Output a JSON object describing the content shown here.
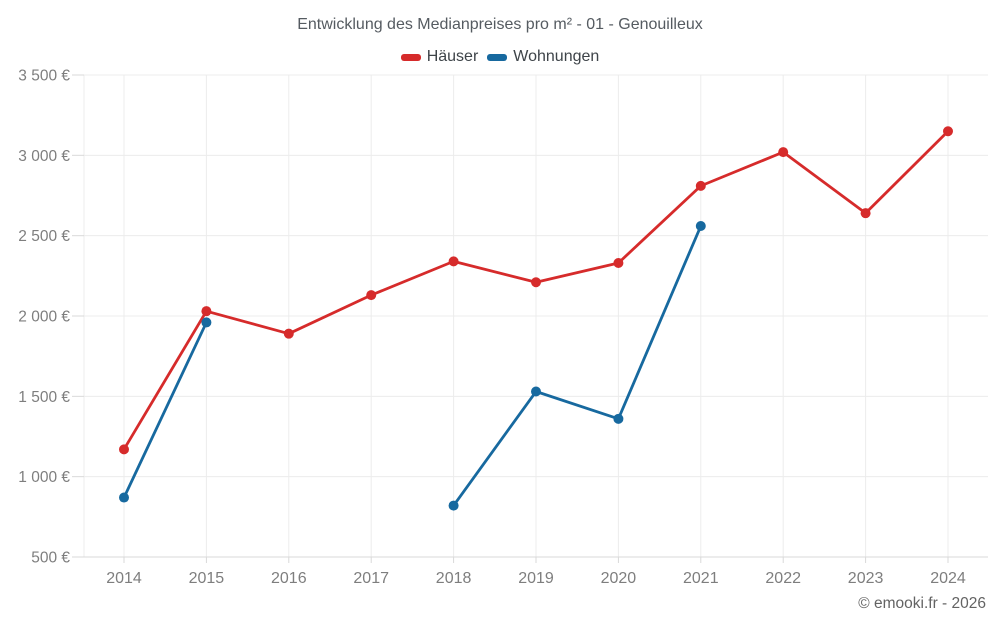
{
  "chart_data": {
    "type": "line",
    "title": "Entwicklung des Medianpreises pro m² - 01 - Genouilleux",
    "xlabel": "",
    "ylabel": "",
    "x": [
      2014,
      2015,
      2016,
      2017,
      2018,
      2019,
      2020,
      2021,
      2022,
      2023,
      2024
    ],
    "series": [
      {
        "name": "Häuser",
        "color": "#d62b2b",
        "values": [
          1170,
          2030,
          1890,
          2130,
          2340,
          2210,
          2330,
          2810,
          3020,
          2640,
          3150
        ]
      },
      {
        "name": "Wohnungen",
        "color": "#17699f",
        "values": [
          870,
          1960,
          null,
          null,
          820,
          1530,
          1360,
          2560,
          null,
          null,
          null
        ]
      }
    ],
    "ylim": [
      500,
      3500
    ],
    "ytick_step": 500,
    "ytick_suffix": " €",
    "ytick_labels": [
      "500 €",
      "1 000 €",
      "1 500 €",
      "2 000 €",
      "2 500 €",
      "3 000 €",
      "3 500 €"
    ],
    "grid": true,
    "legend_position": "top",
    "copyright": "© emooki.fr - 2026"
  },
  "colors": {
    "grid": "#ececec",
    "axis": "#d9d9d9",
    "tick_text": "#7e7e7e",
    "title_text": "#555b61"
  }
}
